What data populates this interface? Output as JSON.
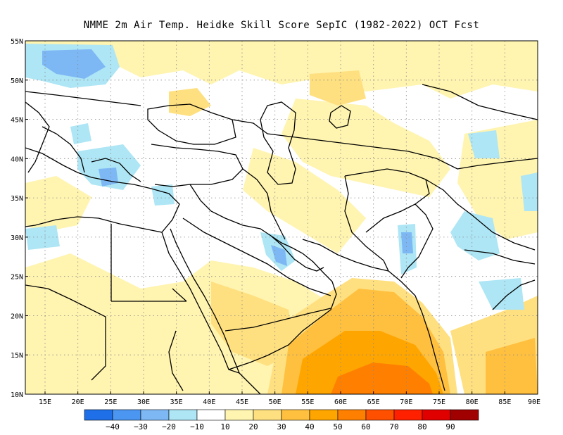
{
  "title": "NMME  2m Air Temp. Heidke Skill Score SepIC (1982-2022) OCT Fcst",
  "map": {
    "lon_range": [
      12,
      90
    ],
    "lat_range": [
      10,
      55
    ],
    "lon_labels": [
      "15E",
      "20E",
      "25E",
      "30E",
      "35E",
      "40E",
      "45E",
      "50E",
      "55E",
      "60E",
      "65E",
      "70E",
      "75E",
      "80E",
      "85E",
      "90E"
    ],
    "lon_label_values": [
      15,
      20,
      25,
      30,
      35,
      40,
      45,
      50,
      55,
      60,
      65,
      70,
      75,
      80,
      85,
      90
    ],
    "lat_labels": [
      "55N",
      "50N",
      "45N",
      "40N",
      "35N",
      "30N",
      "25N",
      "20N",
      "15N",
      "10N"
    ],
    "lat_label_values": [
      55,
      50,
      45,
      40,
      35,
      30,
      25,
      20,
      15,
      10
    ],
    "grid": "dotted"
  },
  "colorbar": {
    "colors": [
      "#1e6fe8",
      "#4a96f0",
      "#7db8f5",
      "#aee6f5",
      "#ffffff",
      "#fff4b0",
      "#ffe080",
      "#ffc040",
      "#ffa500",
      "#ff8000",
      "#ff5000",
      "#ff2000",
      "#e00000",
      "#a00000"
    ],
    "labels": [
      "−40",
      "−30",
      "−20",
      "−10",
      "10",
      "20",
      "30",
      "40",
      "50",
      "60",
      "70",
      "80",
      "90"
    ]
  },
  "colors": {
    "pos_light": "#fff4b0",
    "pos_mid": "#ffe080",
    "pos_strong": "#ffc040",
    "pos_orange": "#ffa500",
    "pos_deep": "#ff8000",
    "neg_light": "#aee6f5",
    "neg_mid": "#7db8f5",
    "neg_strong": "#4a96f0"
  }
}
